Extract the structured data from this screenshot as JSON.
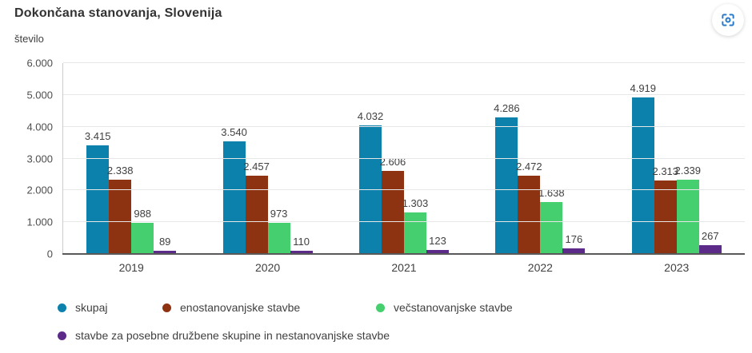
{
  "header": {
    "title": "Dokončana stanovanja, Slovenija",
    "unit_label": "število"
  },
  "toolbar": {
    "focus_icon_color": "#2b7bc9"
  },
  "chart_data": {
    "type": "bar",
    "title": "Dokončana stanovanja, Slovenija",
    "xlabel": "",
    "ylabel": "število",
    "ylim": [
      0,
      6000
    ],
    "yticks": [
      "0",
      "1.000",
      "2.000",
      "3.000",
      "4.000",
      "5.000",
      "6.000"
    ],
    "grid": true,
    "legend_position": "bottom",
    "categories": [
      "2019",
      "2020",
      "2021",
      "2022",
      "2023"
    ],
    "series": [
      {
        "key": "skupaj",
        "name": "skupaj",
        "color": "#0b81ac",
        "values": [
          3415,
          3540,
          4032,
          4286,
          4919
        ],
        "labels": [
          "3.415",
          "3.540",
          "4.032",
          "4.286",
          "4.919"
        ]
      },
      {
        "key": "enostanovanjske-stavbe",
        "name": "enostanovanjske stavbe",
        "color": "#8e3311",
        "values": [
          2338,
          2457,
          2606,
          2472,
          2313
        ],
        "labels": [
          "2.338",
          "2.457",
          "2.606",
          "2.472",
          "2.313"
        ]
      },
      {
        "key": "vecstanovanjske-stavbe",
        "name": "večstanovanjske stavbe",
        "color": "#46cf6e",
        "values": [
          988,
          973,
          1303,
          1638,
          2339
        ],
        "labels": [
          "988",
          "973",
          "1.303",
          "1.638",
          "2.339"
        ]
      },
      {
        "key": "posebne-in-nestanovanjske-stavbe",
        "name": "stavbe za posebne družbene skupine in nestanovanjske stavbe",
        "color": "#5c2b8a",
        "values": [
          89,
          110,
          123,
          176,
          267
        ],
        "labels": [
          "89",
          "110",
          "123",
          "176",
          "267"
        ]
      }
    ]
  }
}
